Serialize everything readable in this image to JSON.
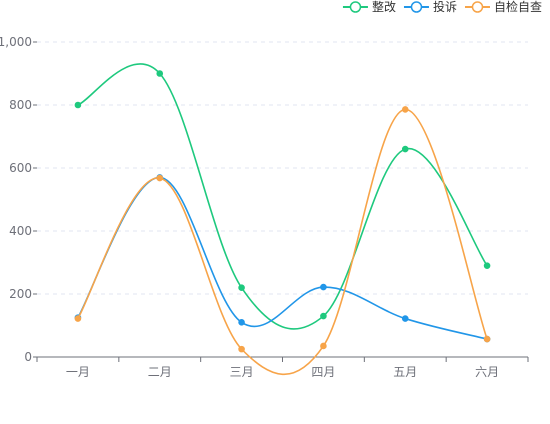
{
  "chart_data": {
    "type": "line",
    "smooth": true,
    "categories": [
      "一月",
      "二月",
      "三月",
      "四月",
      "五月",
      "六月"
    ],
    "series": [
      {
        "name": "整改",
        "color": "#1ec97e",
        "values": [
          800,
          900,
          220,
          130,
          660,
          290
        ]
      },
      {
        "name": "投诉",
        "color": "#2196e8",
        "values": [
          125,
          570,
          110,
          222,
          122,
          57
        ]
      },
      {
        "name": "自检自查",
        "color": "#f7a449",
        "values": [
          122,
          568,
          25,
          35,
          786,
          57
        ]
      }
    ],
    "ylim": [
      0,
      1000
    ],
    "yticks": [
      0,
      200,
      400,
      600,
      800,
      1000
    ],
    "ytick_labels": [
      "0",
      "200",
      "400",
      "600",
      "800",
      "1,000"
    ],
    "legend_position": "top-right",
    "grid": "horizontal-dashed"
  }
}
